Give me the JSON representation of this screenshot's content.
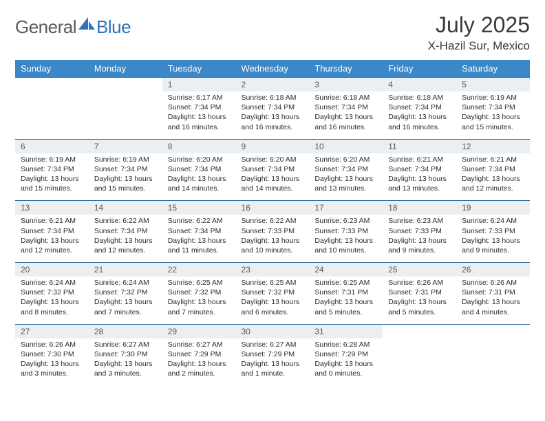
{
  "brand": {
    "part1": "General",
    "part2": "Blue"
  },
  "title": "July 2025",
  "location": "X-Hazil Sur, Mexico",
  "colors": {
    "header_bg": "#3b87c8",
    "header_text": "#ffffff",
    "daynum_bg": "#eceff1",
    "daynum_text": "#55595c",
    "rule": "#2f6aa0",
    "body_text": "#2b2b2b",
    "logo_gray": "#5a5a5a",
    "logo_blue": "#2f73b8"
  },
  "day_headers": [
    "Sunday",
    "Monday",
    "Tuesday",
    "Wednesday",
    "Thursday",
    "Friday",
    "Saturday"
  ],
  "weeks": [
    [
      null,
      null,
      {
        "n": "1",
        "sr": "6:17 AM",
        "ss": "7:34 PM",
        "dl": "13 hours and 16 minutes."
      },
      {
        "n": "2",
        "sr": "6:18 AM",
        "ss": "7:34 PM",
        "dl": "13 hours and 16 minutes."
      },
      {
        "n": "3",
        "sr": "6:18 AM",
        "ss": "7:34 PM",
        "dl": "13 hours and 16 minutes."
      },
      {
        "n": "4",
        "sr": "6:18 AM",
        "ss": "7:34 PM",
        "dl": "13 hours and 16 minutes."
      },
      {
        "n": "5",
        "sr": "6:19 AM",
        "ss": "7:34 PM",
        "dl": "13 hours and 15 minutes."
      }
    ],
    [
      {
        "n": "6",
        "sr": "6:19 AM",
        "ss": "7:34 PM",
        "dl": "13 hours and 15 minutes."
      },
      {
        "n": "7",
        "sr": "6:19 AM",
        "ss": "7:34 PM",
        "dl": "13 hours and 15 minutes."
      },
      {
        "n": "8",
        "sr": "6:20 AM",
        "ss": "7:34 PM",
        "dl": "13 hours and 14 minutes."
      },
      {
        "n": "9",
        "sr": "6:20 AM",
        "ss": "7:34 PM",
        "dl": "13 hours and 14 minutes."
      },
      {
        "n": "10",
        "sr": "6:20 AM",
        "ss": "7:34 PM",
        "dl": "13 hours and 13 minutes."
      },
      {
        "n": "11",
        "sr": "6:21 AM",
        "ss": "7:34 PM",
        "dl": "13 hours and 13 minutes."
      },
      {
        "n": "12",
        "sr": "6:21 AM",
        "ss": "7:34 PM",
        "dl": "13 hours and 12 minutes."
      }
    ],
    [
      {
        "n": "13",
        "sr": "6:21 AM",
        "ss": "7:34 PM",
        "dl": "13 hours and 12 minutes."
      },
      {
        "n": "14",
        "sr": "6:22 AM",
        "ss": "7:34 PM",
        "dl": "13 hours and 12 minutes."
      },
      {
        "n": "15",
        "sr": "6:22 AM",
        "ss": "7:34 PM",
        "dl": "13 hours and 11 minutes."
      },
      {
        "n": "16",
        "sr": "6:22 AM",
        "ss": "7:33 PM",
        "dl": "13 hours and 10 minutes."
      },
      {
        "n": "17",
        "sr": "6:23 AM",
        "ss": "7:33 PM",
        "dl": "13 hours and 10 minutes."
      },
      {
        "n": "18",
        "sr": "6:23 AM",
        "ss": "7:33 PM",
        "dl": "13 hours and 9 minutes."
      },
      {
        "n": "19",
        "sr": "6:24 AM",
        "ss": "7:33 PM",
        "dl": "13 hours and 9 minutes."
      }
    ],
    [
      {
        "n": "20",
        "sr": "6:24 AM",
        "ss": "7:32 PM",
        "dl": "13 hours and 8 minutes."
      },
      {
        "n": "21",
        "sr": "6:24 AM",
        "ss": "7:32 PM",
        "dl": "13 hours and 7 minutes."
      },
      {
        "n": "22",
        "sr": "6:25 AM",
        "ss": "7:32 PM",
        "dl": "13 hours and 7 minutes."
      },
      {
        "n": "23",
        "sr": "6:25 AM",
        "ss": "7:32 PM",
        "dl": "13 hours and 6 minutes."
      },
      {
        "n": "24",
        "sr": "6:25 AM",
        "ss": "7:31 PM",
        "dl": "13 hours and 5 minutes."
      },
      {
        "n": "25",
        "sr": "6:26 AM",
        "ss": "7:31 PM",
        "dl": "13 hours and 5 minutes."
      },
      {
        "n": "26",
        "sr": "6:26 AM",
        "ss": "7:31 PM",
        "dl": "13 hours and 4 minutes."
      }
    ],
    [
      {
        "n": "27",
        "sr": "6:26 AM",
        "ss": "7:30 PM",
        "dl": "13 hours and 3 minutes."
      },
      {
        "n": "28",
        "sr": "6:27 AM",
        "ss": "7:30 PM",
        "dl": "13 hours and 3 minutes."
      },
      {
        "n": "29",
        "sr": "6:27 AM",
        "ss": "7:29 PM",
        "dl": "13 hours and 2 minutes."
      },
      {
        "n": "30",
        "sr": "6:27 AM",
        "ss": "7:29 PM",
        "dl": "13 hours and 1 minute."
      },
      {
        "n": "31",
        "sr": "6:28 AM",
        "ss": "7:29 PM",
        "dl": "13 hours and 0 minutes."
      },
      null,
      null
    ]
  ],
  "labels": {
    "sunrise": "Sunrise:",
    "sunset": "Sunset:",
    "daylight": "Daylight:"
  }
}
